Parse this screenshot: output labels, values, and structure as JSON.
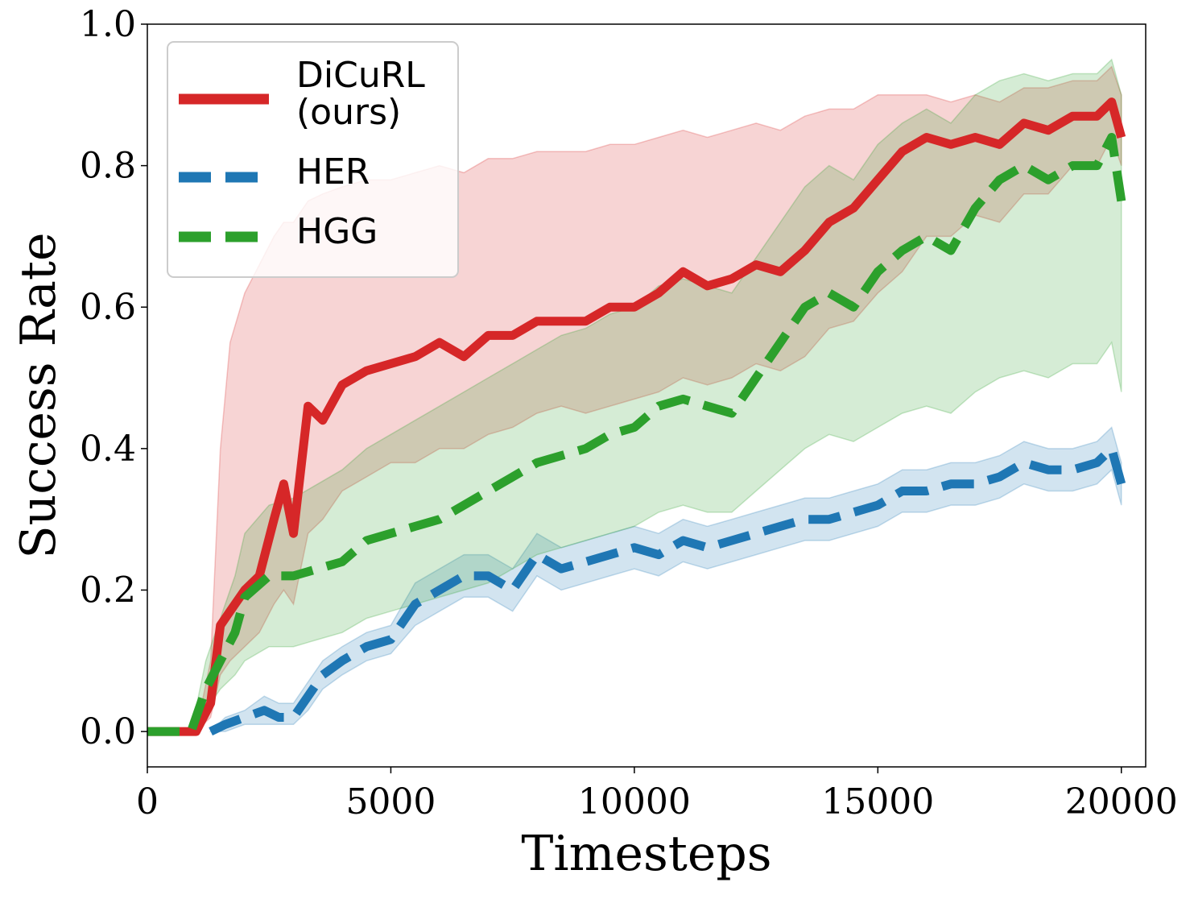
{
  "chart_data": {
    "type": "line",
    "xlabel": "Timesteps",
    "ylabel": "Success Rate",
    "xlim": [
      0,
      20500
    ],
    "ylim": [
      -0.05,
      1.0
    ],
    "xticks": [
      0,
      5000,
      10000,
      15000,
      20000
    ],
    "xtick_labels": [
      "0",
      "5000",
      "10000",
      "15000",
      "20000"
    ],
    "yticks": [
      0.0,
      0.2,
      0.4,
      0.6,
      0.8,
      1.0
    ],
    "ytick_labels": [
      "0.0",
      "0.2",
      "0.4",
      "0.6",
      "0.8",
      "1.0"
    ],
    "grid": false,
    "legend_position": "top-left",
    "shaded_band": "variability band around each mean curve",
    "series": [
      {
        "name": "DiCuRL\n(ours)",
        "legend_lines": [
          "DiCuRL",
          "(ours)"
        ],
        "color": "#d62728",
        "dash": "solid",
        "x": [
          0,
          500,
          1000,
          1300,
          1500,
          1700,
          2000,
          2300,
          2600,
          2800,
          3000,
          3300,
          3600,
          4000,
          4500,
          5000,
          5500,
          6000,
          6500,
          7000,
          7500,
          8000,
          8500,
          9000,
          9500,
          10000,
          10500,
          11000,
          11500,
          12000,
          12500,
          13000,
          13500,
          14000,
          14500,
          15000,
          15500,
          16000,
          16500,
          17000,
          17500,
          18000,
          18500,
          19000,
          19500,
          19800,
          20000
        ],
        "y": [
          0.0,
          0.0,
          0.0,
          0.04,
          0.15,
          0.17,
          0.2,
          0.22,
          0.3,
          0.35,
          0.28,
          0.46,
          0.44,
          0.49,
          0.51,
          0.52,
          0.53,
          0.55,
          0.53,
          0.56,
          0.56,
          0.58,
          0.58,
          0.58,
          0.6,
          0.6,
          0.62,
          0.65,
          0.63,
          0.64,
          0.66,
          0.65,
          0.68,
          0.72,
          0.74,
          0.78,
          0.82,
          0.84,
          0.83,
          0.84,
          0.83,
          0.86,
          0.85,
          0.87,
          0.87,
          0.89,
          0.84
        ],
        "band_low": [
          0.0,
          0.0,
          0.0,
          0.02,
          0.08,
          0.1,
          0.12,
          0.14,
          0.18,
          0.2,
          0.18,
          0.28,
          0.3,
          0.34,
          0.36,
          0.38,
          0.38,
          0.4,
          0.4,
          0.42,
          0.43,
          0.45,
          0.46,
          0.45,
          0.46,
          0.47,
          0.48,
          0.5,
          0.49,
          0.5,
          0.52,
          0.51,
          0.53,
          0.57,
          0.58,
          0.62,
          0.65,
          0.7,
          0.7,
          0.73,
          0.72,
          0.76,
          0.76,
          0.8,
          0.8,
          0.84,
          0.8
        ],
        "band_high": [
          0.0,
          0.0,
          0.0,
          0.1,
          0.4,
          0.55,
          0.62,
          0.66,
          0.7,
          0.72,
          0.72,
          0.75,
          0.76,
          0.77,
          0.78,
          0.78,
          0.79,
          0.8,
          0.79,
          0.81,
          0.81,
          0.82,
          0.82,
          0.82,
          0.83,
          0.83,
          0.84,
          0.85,
          0.84,
          0.85,
          0.86,
          0.85,
          0.87,
          0.88,
          0.88,
          0.9,
          0.9,
          0.9,
          0.89,
          0.9,
          0.89,
          0.91,
          0.91,
          0.92,
          0.92,
          0.94,
          0.9
        ]
      },
      {
        "name": "HER",
        "legend_lines": [
          "HER"
        ],
        "color": "#1f77b4",
        "dash": "dashed",
        "x": [
          1300,
          1600,
          2000,
          2400,
          2700,
          3000,
          3300,
          3600,
          4000,
          4500,
          5000,
          5500,
          6000,
          6500,
          7000,
          7500,
          8000,
          8500,
          9000,
          9500,
          10000,
          10500,
          11000,
          11500,
          12000,
          12500,
          13000,
          13500,
          14000,
          14500,
          15000,
          15500,
          16000,
          16500,
          17000,
          17500,
          18000,
          18500,
          19000,
          19500,
          19800,
          20000
        ],
        "y": [
          0.0,
          0.01,
          0.02,
          0.03,
          0.02,
          0.02,
          0.05,
          0.08,
          0.1,
          0.12,
          0.13,
          0.18,
          0.2,
          0.22,
          0.22,
          0.2,
          0.25,
          0.23,
          0.24,
          0.25,
          0.26,
          0.25,
          0.27,
          0.26,
          0.27,
          0.28,
          0.29,
          0.3,
          0.3,
          0.31,
          0.32,
          0.34,
          0.34,
          0.35,
          0.35,
          0.36,
          0.38,
          0.37,
          0.37,
          0.38,
          0.4,
          0.35
        ],
        "band_low": [
          0.0,
          0.0,
          0.01,
          0.01,
          0.01,
          0.01,
          0.03,
          0.06,
          0.08,
          0.1,
          0.11,
          0.15,
          0.17,
          0.19,
          0.19,
          0.17,
          0.22,
          0.2,
          0.21,
          0.22,
          0.23,
          0.22,
          0.24,
          0.23,
          0.24,
          0.25,
          0.26,
          0.27,
          0.27,
          0.28,
          0.29,
          0.31,
          0.31,
          0.32,
          0.32,
          0.33,
          0.35,
          0.34,
          0.34,
          0.35,
          0.37,
          0.32
        ],
        "band_high": [
          0.0,
          0.02,
          0.03,
          0.05,
          0.04,
          0.04,
          0.07,
          0.1,
          0.12,
          0.14,
          0.15,
          0.21,
          0.23,
          0.25,
          0.25,
          0.23,
          0.28,
          0.26,
          0.27,
          0.28,
          0.29,
          0.28,
          0.3,
          0.29,
          0.3,
          0.31,
          0.32,
          0.33,
          0.33,
          0.34,
          0.35,
          0.37,
          0.37,
          0.38,
          0.38,
          0.39,
          0.41,
          0.4,
          0.4,
          0.41,
          0.43,
          0.38
        ]
      },
      {
        "name": "HGG",
        "legend_lines": [
          "HGG"
        ],
        "color": "#2ca02c",
        "dash": "dashed",
        "x": [
          0,
          500,
          900,
          1200,
          1500,
          1800,
          2000,
          2500,
          3000,
          3500,
          4000,
          4500,
          5000,
          5500,
          6000,
          6500,
          7000,
          7500,
          8000,
          8500,
          9000,
          9500,
          10000,
          10500,
          11000,
          11500,
          12000,
          12500,
          13000,
          13500,
          14000,
          14500,
          15000,
          15500,
          16000,
          16500,
          17000,
          17500,
          18000,
          18500,
          19000,
          19500,
          19800,
          20000
        ],
        "y": [
          0.0,
          0.0,
          0.0,
          0.06,
          0.1,
          0.14,
          0.19,
          0.22,
          0.22,
          0.23,
          0.24,
          0.27,
          0.28,
          0.29,
          0.3,
          0.32,
          0.34,
          0.36,
          0.38,
          0.39,
          0.4,
          0.42,
          0.43,
          0.46,
          0.47,
          0.46,
          0.45,
          0.5,
          0.55,
          0.6,
          0.62,
          0.6,
          0.65,
          0.68,
          0.7,
          0.68,
          0.74,
          0.78,
          0.8,
          0.78,
          0.8,
          0.8,
          0.84,
          0.75
        ],
        "band_low": [
          0.0,
          0.0,
          0.0,
          0.03,
          0.06,
          0.08,
          0.1,
          0.12,
          0.12,
          0.13,
          0.14,
          0.16,
          0.17,
          0.18,
          0.19,
          0.2,
          0.21,
          0.23,
          0.25,
          0.26,
          0.27,
          0.28,
          0.29,
          0.31,
          0.32,
          0.31,
          0.31,
          0.34,
          0.37,
          0.4,
          0.42,
          0.41,
          0.43,
          0.45,
          0.46,
          0.45,
          0.48,
          0.5,
          0.51,
          0.5,
          0.52,
          0.52,
          0.55,
          0.48
        ],
        "band_high": [
          0.0,
          0.0,
          0.0,
          0.1,
          0.16,
          0.22,
          0.28,
          0.32,
          0.33,
          0.35,
          0.37,
          0.4,
          0.42,
          0.44,
          0.46,
          0.48,
          0.5,
          0.52,
          0.54,
          0.56,
          0.57,
          0.59,
          0.6,
          0.63,
          0.64,
          0.63,
          0.62,
          0.67,
          0.72,
          0.77,
          0.8,
          0.78,
          0.83,
          0.86,
          0.88,
          0.86,
          0.9,
          0.92,
          0.93,
          0.92,
          0.93,
          0.93,
          0.95,
          0.9
        ]
      }
    ]
  }
}
